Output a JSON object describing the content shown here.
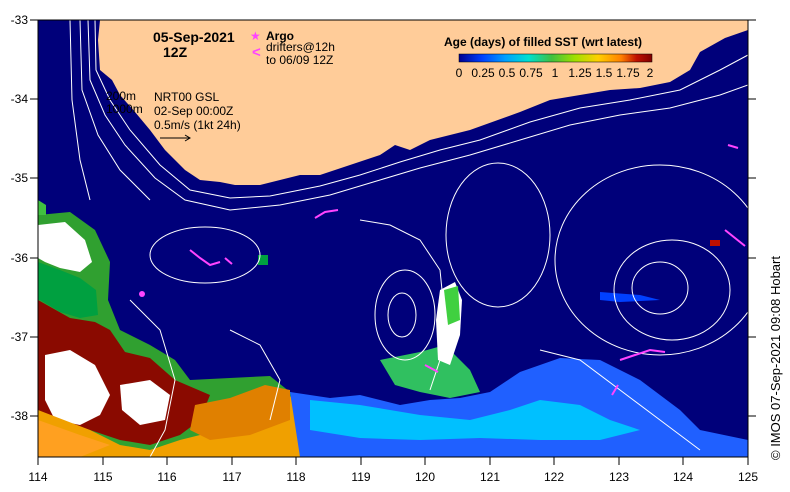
{
  "map": {
    "title_date": "05-Sep-2021",
    "title_time": "12Z",
    "legend": {
      "argo_label": "Argo",
      "argo_symbol": "★",
      "drifter_symbol": "<",
      "drifter_line1": "drifters@12h",
      "drifter_line2": "to 06/09 12Z",
      "marker_color": "#ff44ff"
    },
    "contours": {
      "line1": "200m",
      "line2": "1000m"
    },
    "product": {
      "line1": "NRT00 GSL",
      "line2": "02-Sep 00:00Z",
      "line3": "0.5m/s (1kt 24h)"
    },
    "colorbar": {
      "title": "Age (days) of filled SST (wrt latest)",
      "ticks": [
        "0",
        "0.25",
        "0.5",
        "0.75",
        "1",
        "1.25",
        "1.5",
        "1.75",
        "2"
      ],
      "colors": [
        "#000090",
        "#0040ff",
        "#00a0ff",
        "#00e0d0",
        "#40c040",
        "#a0e000",
        "#ffd000",
        "#ff8000",
        "#c01000",
        "#800000"
      ]
    },
    "x_ticks": [
      "114",
      "115",
      "116",
      "117",
      "118",
      "119",
      "120",
      "121",
      "122",
      "123",
      "124",
      "125"
    ],
    "y_ticks": [
      "-33",
      "-34",
      "-35",
      "-36",
      "-37",
      "-38"
    ],
    "credit": "©  IMOS 07-Sep-2021 09:08 Hobart",
    "colors": {
      "ocean": "#00007a",
      "land": "#ffcc99",
      "contour": "#ffffff"
    }
  }
}
